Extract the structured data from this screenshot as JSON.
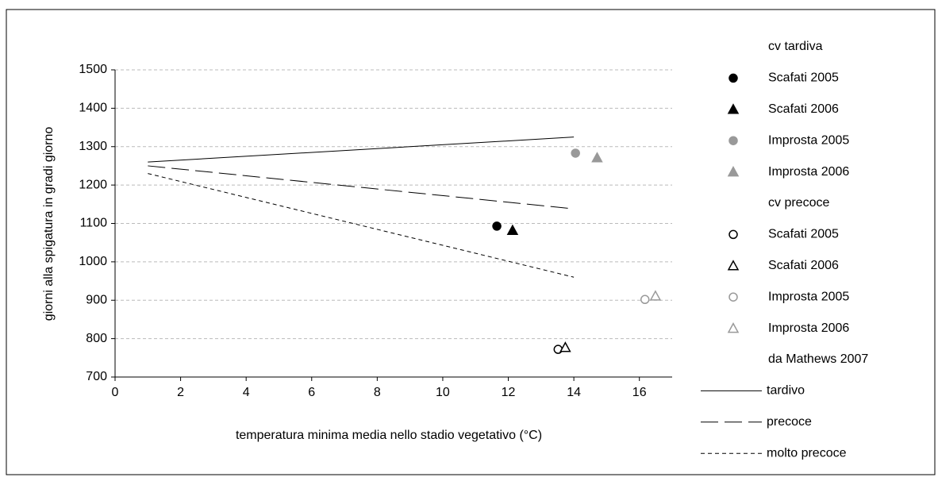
{
  "chart_data": {
    "type": "scatter",
    "x_label": "temperatura minima media nello stadio vegetativo (°C)",
    "y_label": "giorni alla spigatura in gradi giorno",
    "xlim": [
      0,
      17
    ],
    "xticks": [
      0,
      2,
      4,
      6,
      8,
      10,
      12,
      14,
      16
    ],
    "ylim": [
      700,
      1500
    ],
    "yticks": [
      700,
      800,
      900,
      1000,
      1100,
      1200,
      1300,
      1400,
      1500
    ],
    "grid": true,
    "groups": [
      {
        "title": "cv tardiva",
        "series": [
          {
            "name": "Scafati 2005",
            "color": "#000000",
            "marker": "circle",
            "filled": true,
            "x": [
              11.65
            ],
            "values": [
              1093
            ]
          },
          {
            "name": "Scafati 2006",
            "color": "#000000",
            "marker": "triangle",
            "filled": true,
            "x": [
              12.13
            ],
            "values": [
              1082
            ]
          },
          {
            "name": "Improsta 2005",
            "color": "#999999",
            "marker": "circle",
            "filled": true,
            "x": [
              14.05
            ],
            "values": [
              1283
            ]
          },
          {
            "name": "Improsta 2006",
            "color": "#999999",
            "marker": "triangle",
            "filled": true,
            "x": [
              14.71
            ],
            "values": [
              1271
            ]
          }
        ]
      },
      {
        "title": "cv precoce",
        "series": [
          {
            "name": "Scafati 2005",
            "color": "#000000",
            "marker": "circle",
            "filled": false,
            "x": [
              13.52
            ],
            "values": [
              772
            ]
          },
          {
            "name": "Scafati 2006",
            "color": "#000000",
            "marker": "triangle",
            "filled": false,
            "x": [
              13.74
            ],
            "values": [
              777
            ]
          },
          {
            "name": "Improsta 2005",
            "color": "#999999",
            "marker": "circle",
            "filled": false,
            "x": [
              16.17
            ],
            "values": [
              902
            ]
          },
          {
            "name": "Improsta 2006",
            "color": "#999999",
            "marker": "triangle",
            "filled": false,
            "x": [
              16.49
            ],
            "values": [
              911
            ]
          }
        ]
      },
      {
        "title": "da Mathews 2007",
        "series": [
          {
            "name": "tardivo",
            "color": "#000000",
            "line_style": "solid",
            "x": [
              1,
              14
            ],
            "values": [
              1260,
              1325
            ]
          },
          {
            "name": "precoce",
            "color": "#000000",
            "line_style": "long-dash",
            "x": [
              1,
              14
            ],
            "values": [
              1250,
              1138
            ]
          },
          {
            "name": "molto precoce",
            "color": "#000000",
            "line_style": "short-dash",
            "x": [
              1,
              14
            ],
            "values": [
              1230,
              960
            ]
          }
        ]
      }
    ]
  }
}
